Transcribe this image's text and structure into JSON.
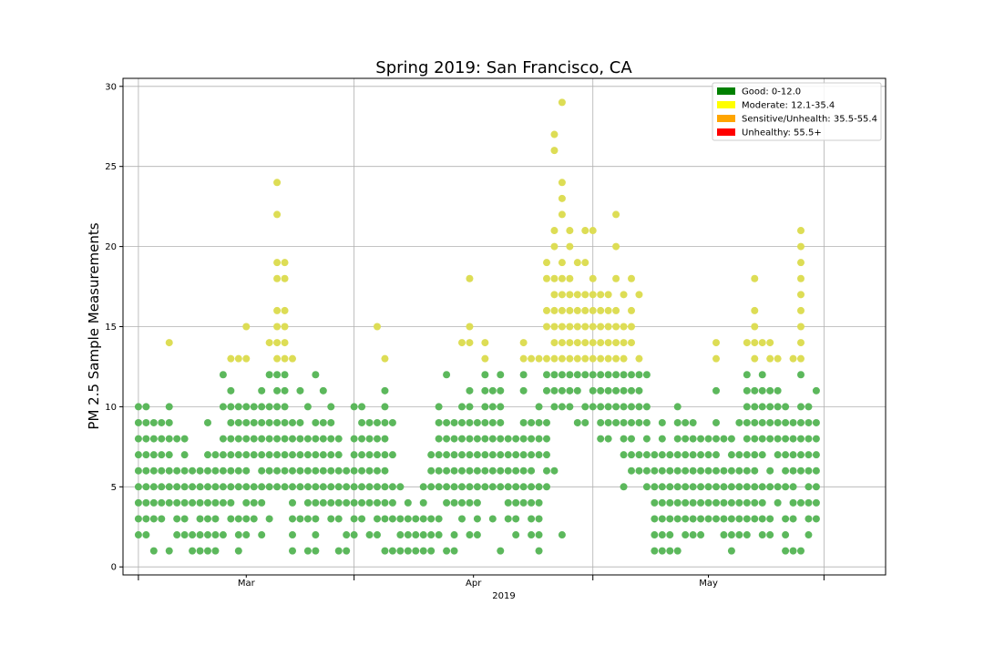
{
  "chart_data": {
    "type": "scatter",
    "title": "Spring 2019: San Francisco, CA",
    "xlabel": "",
    "ylabel": "PM 2.5 Sample Measurements",
    "x_tick_labels": [
      "Mar",
      "Apr",
      "May"
    ],
    "x_year_label": "2019",
    "x_range": [
      "2019-02-14",
      "2019-05-24"
    ],
    "x_major_ticks": [
      "2019-02-16",
      "2019-03-16",
      "2019-04-16",
      "2019-05-16"
    ],
    "y_ticks": [
      0,
      5,
      10,
      15,
      20,
      25,
      30
    ],
    "ylim": [
      -0.5,
      30.5
    ],
    "grid": true,
    "legend_position": "top-right",
    "legend": [
      {
        "label": "Good: 0-12.0",
        "color": "#008000"
      },
      {
        "label": "Moderate: 12.1-35.4",
        "color": "#ffff00"
      },
      {
        "label": "Sensitive/Unhealth: 35.5-55.4",
        "color": "#ffa500"
      },
      {
        "label": "Unhealthy: 55.5+",
        "color": "#ff0000"
      }
    ],
    "point_colors": {
      "good": "#5cb85c",
      "moderate": "#dddd55"
    },
    "points": [
      [
        "2019-02-16",
        [
          2,
          3,
          4,
          5,
          6,
          7,
          8,
          9,
          10
        ]
      ],
      [
        "2019-02-17",
        [
          2,
          3,
          4,
          5,
          6,
          7,
          8,
          9,
          10
        ]
      ],
      [
        "2019-02-18",
        [
          1,
          3,
          4,
          5,
          6,
          7,
          8,
          9
        ]
      ],
      [
        "2019-02-19",
        [
          3,
          4,
          5,
          6,
          7,
          8,
          9
        ]
      ],
      [
        "2019-02-20",
        [
          1,
          4,
          5,
          6,
          7,
          8,
          9,
          10,
          14
        ]
      ],
      [
        "2019-02-21",
        [
          2,
          3,
          4,
          5,
          6,
          8
        ]
      ],
      [
        "2019-02-22",
        [
          2,
          3,
          4,
          5,
          6,
          7,
          8
        ]
      ],
      [
        "2019-02-23",
        [
          1,
          2,
          4,
          5,
          6
        ]
      ],
      [
        "2019-02-24",
        [
          1,
          2,
          3,
          4,
          5,
          6
        ]
      ],
      [
        "2019-02-25",
        [
          1,
          2,
          3,
          4,
          5,
          6,
          7,
          9
        ]
      ],
      [
        "2019-02-26",
        [
          1,
          2,
          3,
          4,
          5,
          6,
          7
        ]
      ],
      [
        "2019-02-27",
        [
          2,
          4,
          5,
          6,
          7,
          8,
          10,
          12
        ]
      ],
      [
        "2019-02-28",
        [
          3,
          4,
          5,
          6,
          7,
          8,
          9,
          10,
          11,
          13
        ]
      ],
      [
        "2019-03-01",
        [
          1,
          2,
          3,
          5,
          6,
          7,
          8,
          9,
          10,
          13
        ]
      ],
      [
        "2019-03-02",
        [
          2,
          3,
          4,
          5,
          6,
          7,
          8,
          9,
          10,
          13,
          15
        ]
      ],
      [
        "2019-03-03",
        [
          3,
          4,
          5,
          7,
          8,
          9,
          10
        ]
      ],
      [
        "2019-03-04",
        [
          2,
          4,
          5,
          6,
          7,
          8,
          9,
          10,
          11
        ]
      ],
      [
        "2019-03-05",
        [
          3,
          5,
          6,
          7,
          8,
          9,
          10,
          12,
          14
        ]
      ],
      [
        "2019-03-06",
        [
          5,
          6,
          7,
          8,
          9,
          10,
          11,
          12,
          13,
          14,
          15,
          16,
          18,
          19,
          22,
          24
        ]
      ],
      [
        "2019-03-07",
        [
          5,
          6,
          7,
          8,
          9,
          10,
          11,
          12,
          13,
          14,
          15,
          16,
          18,
          19
        ]
      ],
      [
        "2019-03-08",
        [
          1,
          2,
          3,
          4,
          5,
          6,
          7,
          8,
          9,
          13
        ]
      ],
      [
        "2019-03-09",
        [
          3,
          5,
          6,
          7,
          8,
          9,
          11
        ]
      ],
      [
        "2019-03-10",
        [
          1,
          3,
          4,
          5,
          6,
          7,
          8,
          10
        ]
      ],
      [
        "2019-03-11",
        [
          1,
          2,
          3,
          4,
          5,
          6,
          7,
          8,
          9,
          12
        ]
      ],
      [
        "2019-03-12",
        [
          4,
          5,
          6,
          7,
          8,
          9,
          11
        ]
      ],
      [
        "2019-03-13",
        [
          3,
          4,
          5,
          6,
          7,
          8,
          9,
          10
        ]
      ],
      [
        "2019-03-14",
        [
          1,
          3,
          4,
          5,
          6,
          7,
          8
        ]
      ],
      [
        "2019-03-15",
        [
          1,
          2,
          4,
          5,
          6
        ]
      ],
      [
        "2019-03-16",
        [
          2,
          3,
          4,
          5,
          6,
          7,
          8,
          10
        ]
      ],
      [
        "2019-03-17",
        [
          3,
          4,
          5,
          6,
          7,
          8,
          9,
          10
        ]
      ],
      [
        "2019-03-18",
        [
          2,
          4,
          5,
          6,
          7,
          8,
          9
        ]
      ],
      [
        "2019-03-19",
        [
          2,
          3,
          4,
          5,
          6,
          7,
          8,
          9,
          15
        ]
      ],
      [
        "2019-03-20",
        [
          1,
          3,
          4,
          5,
          6,
          7,
          8,
          9,
          10,
          11,
          13
        ]
      ],
      [
        "2019-03-21",
        [
          1,
          3,
          4,
          5,
          7,
          9
        ]
      ],
      [
        "2019-03-22",
        [
          1,
          2,
          3,
          5
        ]
      ],
      [
        "2019-03-23",
        [
          1,
          2,
          3,
          4
        ]
      ],
      [
        "2019-03-24",
        [
          1,
          2,
          3
        ]
      ],
      [
        "2019-03-25",
        [
          1,
          2,
          3,
          4,
          5
        ]
      ],
      [
        "2019-03-26",
        [
          1,
          2,
          3,
          5,
          6,
          7
        ]
      ],
      [
        "2019-03-27",
        [
          2,
          3,
          5,
          6,
          7,
          8,
          9,
          10
        ]
      ],
      [
        "2019-03-28",
        [
          1,
          4,
          5,
          6,
          7,
          8,
          9,
          12
        ]
      ],
      [
        "2019-03-29",
        [
          1,
          2,
          4,
          5,
          6,
          7,
          8,
          9
        ]
      ],
      [
        "2019-03-30",
        [
          3,
          4,
          5,
          6,
          7,
          8,
          9,
          10,
          14
        ]
      ],
      [
        "2019-03-31",
        [
          2,
          4,
          5,
          6,
          7,
          8,
          9,
          10,
          11,
          14,
          15,
          18
        ]
      ],
      [
        "2019-04-01",
        [
          2,
          3,
          4,
          5,
          6,
          7,
          8,
          9
        ]
      ],
      [
        "2019-04-02",
        [
          5,
          6,
          7,
          8,
          9,
          10,
          11,
          12,
          13,
          14
        ]
      ],
      [
        "2019-04-03",
        [
          3,
          5,
          6,
          7,
          8,
          9,
          10,
          11
        ]
      ],
      [
        "2019-04-04",
        [
          1,
          5,
          6,
          7,
          8,
          9,
          10,
          11,
          12
        ]
      ],
      [
        "2019-04-05",
        [
          3,
          4,
          5,
          6,
          7,
          8
        ]
      ],
      [
        "2019-04-06",
        [
          2,
          3,
          4,
          5,
          6,
          7,
          8
        ]
      ],
      [
        "2019-04-07",
        [
          4,
          5,
          6,
          7,
          8,
          9,
          11,
          12,
          13,
          14
        ]
      ],
      [
        "2019-04-08",
        [
          2,
          3,
          4,
          5,
          6,
          7,
          8,
          9,
          13
        ]
      ],
      [
        "2019-04-09",
        [
          1,
          2,
          3,
          4,
          5,
          7,
          8,
          9,
          10,
          13
        ]
      ],
      [
        "2019-04-10",
        [
          5,
          6,
          7,
          8,
          9,
          11,
          12,
          13,
          15,
          16,
          18,
          19
        ]
      ],
      [
        "2019-04-11",
        [
          6,
          10,
          11,
          12,
          13,
          14,
          15,
          16,
          17,
          18,
          20,
          21,
          26,
          27
        ]
      ],
      [
        "2019-04-12",
        [
          2,
          10,
          11,
          12,
          13,
          14,
          15,
          16,
          17,
          18,
          19,
          22,
          23,
          24,
          29
        ]
      ],
      [
        "2019-04-13",
        [
          10,
          11,
          12,
          13,
          14,
          15,
          16,
          17,
          18,
          20,
          21
        ]
      ],
      [
        "2019-04-14",
        [
          9,
          11,
          12,
          13,
          14,
          15,
          16,
          17,
          19
        ]
      ],
      [
        "2019-04-15",
        [
          9,
          10,
          12,
          13,
          14,
          15,
          16,
          17,
          19,
          21
        ]
      ],
      [
        "2019-04-16",
        [
          10,
          11,
          12,
          13,
          14,
          15,
          16,
          17,
          18,
          21
        ]
      ],
      [
        "2019-04-17",
        [
          8,
          9,
          10,
          11,
          12,
          13,
          14,
          15,
          16,
          17
        ]
      ],
      [
        "2019-04-18",
        [
          8,
          9,
          10,
          11,
          12,
          13,
          14,
          15,
          16,
          17
        ]
      ],
      [
        "2019-04-19",
        [
          9,
          10,
          11,
          12,
          13,
          14,
          15,
          16,
          18,
          20,
          22
        ]
      ],
      [
        "2019-04-20",
        [
          5,
          7,
          8,
          9,
          10,
          11,
          12,
          13,
          14,
          15,
          17
        ]
      ],
      [
        "2019-04-21",
        [
          6,
          7,
          8,
          9,
          10,
          11,
          12,
          14,
          15,
          16,
          18
        ]
      ],
      [
        "2019-04-22",
        [
          6,
          7,
          9,
          10,
          11,
          12,
          13,
          17
        ]
      ],
      [
        "2019-04-23",
        [
          5,
          6,
          7,
          8,
          9,
          10,
          12
        ]
      ],
      [
        "2019-04-24",
        [
          1,
          2,
          3,
          4,
          5,
          6,
          7
        ]
      ],
      [
        "2019-04-25",
        [
          1,
          2,
          3,
          4,
          5,
          6,
          7,
          8,
          9
        ]
      ],
      [
        "2019-04-26",
        [
          1,
          2,
          3,
          4,
          5,
          6,
          7
        ]
      ],
      [
        "2019-04-27",
        [
          1,
          3,
          4,
          5,
          6,
          7,
          8,
          9,
          10
        ]
      ],
      [
        "2019-04-28",
        [
          2,
          3,
          4,
          5,
          6,
          7,
          8,
          9
        ]
      ],
      [
        "2019-04-29",
        [
          2,
          3,
          4,
          5,
          6,
          7,
          8,
          9
        ]
      ],
      [
        "2019-04-30",
        [
          2,
          3,
          4,
          5,
          6,
          7,
          8
        ]
      ],
      [
        "2019-05-01",
        [
          3,
          4,
          5,
          6,
          7,
          8
        ]
      ],
      [
        "2019-05-02",
        [
          3,
          4,
          5,
          6,
          7,
          8,
          9,
          11,
          13,
          14
        ]
      ],
      [
        "2019-05-03",
        [
          2,
          3,
          4,
          5,
          6,
          8
        ]
      ],
      [
        "2019-05-04",
        [
          1,
          2,
          3,
          4,
          5,
          6,
          7,
          8
        ]
      ],
      [
        "2019-05-05",
        [
          2,
          3,
          4,
          5,
          6,
          7,
          9
        ]
      ],
      [
        "2019-05-06",
        [
          2,
          3,
          4,
          5,
          6,
          7,
          8,
          9,
          10,
          11,
          12,
          14
        ]
      ],
      [
        "2019-05-07",
        [
          3,
          4,
          5,
          6,
          7,
          8,
          9,
          10,
          11,
          13,
          14,
          15,
          16,
          18
        ]
      ],
      [
        "2019-05-08",
        [
          2,
          3,
          4,
          5,
          7,
          8,
          9,
          10,
          11,
          12,
          14
        ]
      ],
      [
        "2019-05-09",
        [
          2,
          3,
          5,
          6,
          8,
          9,
          10,
          11,
          13,
          14
        ]
      ],
      [
        "2019-05-10",
        [
          4,
          5,
          7,
          8,
          9,
          10,
          11,
          13
        ]
      ],
      [
        "2019-05-11",
        [
          1,
          2,
          3,
          5,
          6,
          7,
          8,
          9,
          10
        ]
      ],
      [
        "2019-05-12",
        [
          1,
          3,
          4,
          5,
          6,
          7,
          8,
          9,
          13
        ]
      ],
      [
        "2019-05-13",
        [
          1,
          4,
          6,
          7,
          8,
          9,
          10,
          12,
          13,
          14,
          15,
          16,
          17,
          18,
          19,
          20,
          21
        ]
      ],
      [
        "2019-05-14",
        [
          2,
          3,
          4,
          5,
          6,
          7,
          8,
          9,
          10
        ]
      ],
      [
        "2019-05-15",
        [
          3,
          4,
          5,
          6,
          7,
          8,
          9,
          11
        ]
      ]
    ]
  }
}
